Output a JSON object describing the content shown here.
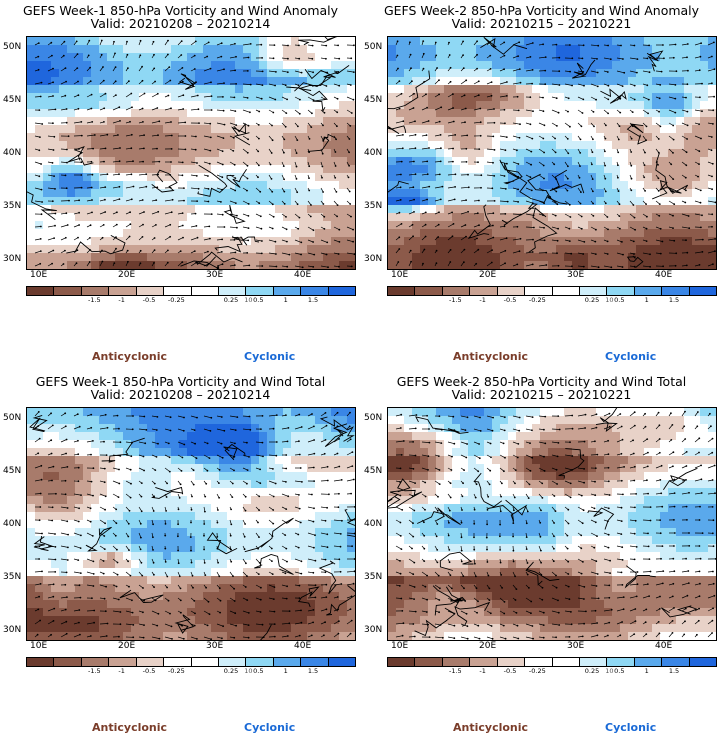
{
  "panels": [
    {
      "title": "GEFS Week-1 850-hPa Vorticity and Wind Anomaly",
      "valid": "Valid: 20210208 – 20210214",
      "seed": 11
    },
    {
      "title": "GEFS Week-2 850-hPa Vorticity and Wind Anomaly",
      "valid": "Valid: 20210215 – 20210221",
      "seed": 23
    },
    {
      "title": "GEFS Week-1 850-hPa Vorticity and Wind Total",
      "valid": "Valid: 20210208 – 20210214",
      "seed": 37
    },
    {
      "title": "GEFS Week-2 850-hPa Vorticity and Wind Total",
      "valid": "Valid: 20210215 – 20210221",
      "seed": 53
    }
  ],
  "y_ticks": [
    "50N",
    "45N",
    "40N",
    "35N",
    "30N"
  ],
  "x_ticks": [
    "10E",
    "20E",
    "30E",
    "40E"
  ],
  "colorbar": {
    "labels": [
      "-1.5",
      "-1",
      "-0.5",
      "-0.25",
      "0.25",
      "0.5",
      "1",
      "1.5"
    ],
    "unit_label": "10",
    "colors": [
      "#6b3b2e",
      "#8c5a4a",
      "#a87b6b",
      "#c9a293",
      "#e8d2c8",
      "#ffffff",
      "#ffffff",
      "#cfeefa",
      "#8fd8f4",
      "#5aa9ec",
      "#3a86e6",
      "#1f66dd"
    ]
  },
  "legend": {
    "anticyclonic": "Anticyclonic",
    "cyclonic": "Cyclonic"
  }
}
